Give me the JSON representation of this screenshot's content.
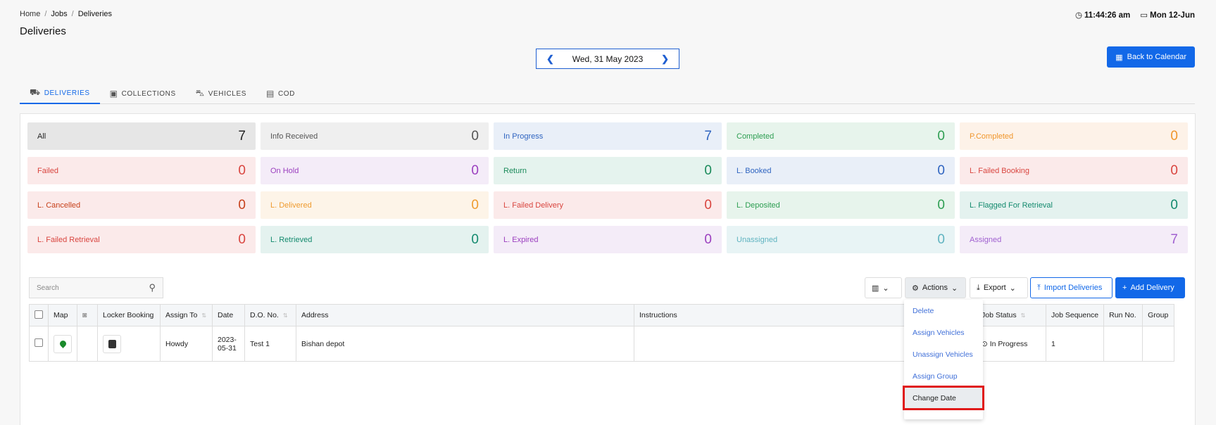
{
  "breadcrumb": [
    "Home",
    "Jobs",
    "Deliveries"
  ],
  "page_title": "Deliveries",
  "clock": {
    "time": "11:44:26 am",
    "date": "Mon 12-Jun"
  },
  "date_nav": {
    "label": "Wed, 31 May 2023"
  },
  "back_to_calendar": "Back to Calendar",
  "tabs": [
    {
      "label": "DELIVERIES",
      "icon": "truck-icon"
    },
    {
      "label": "COLLECTIONS",
      "icon": "box-icon"
    },
    {
      "label": "VEHICLES",
      "icon": "car-icon"
    },
    {
      "label": "COD",
      "icon": "cash-icon"
    }
  ],
  "status_cards": [
    {
      "label": "All",
      "count": "7",
      "bg": "#e6e6e6",
      "fg": "#222"
    },
    {
      "label": "Info Received",
      "count": "0",
      "bg": "#efefef",
      "fg": "#555"
    },
    {
      "label": "In Progress",
      "count": "7",
      "bg": "#e9eff8",
      "fg": "#2f64c0"
    },
    {
      "label": "Completed",
      "count": "0",
      "bg": "#e7f4ec",
      "fg": "#2e9e52"
    },
    {
      "label": "P.Completed",
      "count": "0",
      "bg": "#fdf2e8",
      "fg": "#f0962c"
    },
    {
      "label": "Failed",
      "count": "0",
      "bg": "#fbeaea",
      "fg": "#d9453f"
    },
    {
      "label": "On Hold",
      "count": "0",
      "bg": "#f4ecf8",
      "fg": "#9b3fbf"
    },
    {
      "label": "Return",
      "count": "0",
      "bg": "#e5f3ee",
      "fg": "#1a8a5a"
    },
    {
      "label": "L. Booked",
      "count": "0",
      "bg": "#e9eff8",
      "fg": "#2f64c0"
    },
    {
      "label": "L. Failed Booking",
      "count": "0",
      "bg": "#fbeaea",
      "fg": "#d9453f"
    },
    {
      "label": "L. Cancelled",
      "count": "0",
      "bg": "#fbeaea",
      "fg": "#c7411b"
    },
    {
      "label": "L. Delivered",
      "count": "0",
      "bg": "#fdf4e8",
      "fg": "#ef9b2f"
    },
    {
      "label": "L. Failed Delivery",
      "count": "0",
      "bg": "#fbeaea",
      "fg": "#d9453f"
    },
    {
      "label": "L. Deposited",
      "count": "0",
      "bg": "#e7f4ec",
      "fg": "#2e9e52"
    },
    {
      "label": "L. Flagged For Retrieval",
      "count": "0",
      "bg": "#e4f2ef",
      "fg": "#138a6e"
    },
    {
      "label": "L. Failed Retrieval",
      "count": "0",
      "bg": "#fbeaea",
      "fg": "#d9453f"
    },
    {
      "label": "L. Retrieved",
      "count": "0",
      "bg": "#e4f2ef",
      "fg": "#138a6e"
    },
    {
      "label": "L. Expired",
      "count": "0",
      "bg": "#f4ecf8",
      "fg": "#9b3fbf"
    },
    {
      "label": "Unassigned",
      "count": "0",
      "bg": "#e8f4f5",
      "fg": "#5fb3c0"
    },
    {
      "label": "Assigned",
      "count": "7",
      "bg": "#f4ecf8",
      "fg": "#a060d0"
    }
  ],
  "search": {
    "placeholder": "Search"
  },
  "toolbar": {
    "actions": "Actions",
    "export": "Export",
    "import": "Import Deliveries",
    "add": "Add Delivery"
  },
  "table": {
    "columns": [
      "Map",
      "Locker Booking",
      "Assign To",
      "Date",
      "D.O. No.",
      "Address",
      "Instructions",
      "Job Status",
      "Job Sequence",
      "Run No.",
      "Group"
    ],
    "rows": [
      {
        "assign_to": "Howdy",
        "date": "2023-05-31",
        "do_no": "Test 1",
        "address": "Bishan depot",
        "instructions": "",
        "job_status": "In Progress",
        "job_sequence": "1",
        "run_no": "",
        "group": ""
      }
    ]
  },
  "actions_menu": [
    "Delete",
    "Assign Vehicles",
    "Unassign Vehicles",
    "Assign Group",
    "Change Date"
  ]
}
